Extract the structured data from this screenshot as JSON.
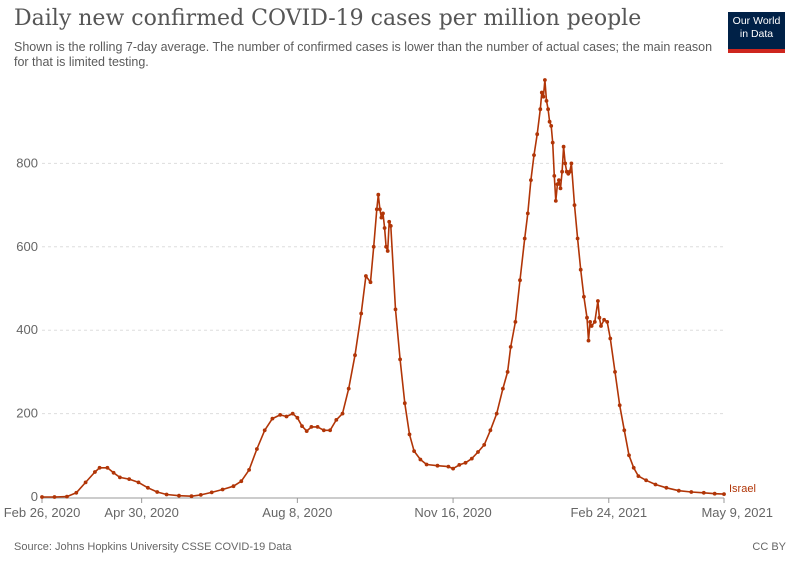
{
  "header": {
    "title": "Daily new confirmed COVID-19 cases per million people",
    "subtitle": "Shown is the rolling 7-day average. The number of confirmed cases is lower than the number of actual cases; the main reason for that is limited testing."
  },
  "logo": {
    "line1": "Our World",
    "line2": "in Data"
  },
  "footer": {
    "source": "Source: Johns Hopkins University CSSE COVID-19 Data",
    "license": "CC BY"
  },
  "colors": {
    "series": "#b13507",
    "grid": "#dddddd",
    "axis": "#999999"
  },
  "chart_data": {
    "type": "line",
    "title": "Daily new confirmed COVID-19 cases per million people",
    "xlabel": "",
    "ylabel": "",
    "x_type": "date",
    "xlim": [
      "2020-02-26",
      "2021-05-09"
    ],
    "ylim": [
      0,
      1000
    ],
    "yticks": [
      0,
      200,
      400,
      600,
      800
    ],
    "yticklabels": [
      "0",
      "200",
      "400",
      "600",
      "800"
    ],
    "xticks": [
      "2020-02-26",
      "2020-04-30",
      "2020-08-08",
      "2020-11-16",
      "2021-02-24",
      "2021-05-09"
    ],
    "xticklabels": [
      "Feb 26, 2020",
      "Apr 30, 2020",
      "Aug 8, 2020",
      "Nov 16, 2020",
      "Feb 24, 2021",
      "May 9, 2021"
    ],
    "grid": true,
    "series": [
      {
        "name": "Israel",
        "color": "#b13507",
        "points": [
          [
            "2020-02-26",
            0
          ],
          [
            "2020-03-05",
            0
          ],
          [
            "2020-03-13",
            1
          ],
          [
            "2020-03-19",
            10
          ],
          [
            "2020-03-25",
            35
          ],
          [
            "2020-03-31",
            60
          ],
          [
            "2020-04-03",
            70
          ],
          [
            "2020-04-08",
            70
          ],
          [
            "2020-04-12",
            58
          ],
          [
            "2020-04-16",
            47
          ],
          [
            "2020-04-22",
            43
          ],
          [
            "2020-04-28",
            35
          ],
          [
            "2020-05-04",
            22
          ],
          [
            "2020-05-10",
            12
          ],
          [
            "2020-05-16",
            6
          ],
          [
            "2020-05-24",
            3
          ],
          [
            "2020-06-01",
            2
          ],
          [
            "2020-06-07",
            5
          ],
          [
            "2020-06-14",
            11
          ],
          [
            "2020-06-21",
            18
          ],
          [
            "2020-06-28",
            26
          ],
          [
            "2020-07-03",
            38
          ],
          [
            "2020-07-08",
            65
          ],
          [
            "2020-07-13",
            115
          ],
          [
            "2020-07-18",
            160
          ],
          [
            "2020-07-23",
            188
          ],
          [
            "2020-07-28",
            197
          ],
          [
            "2020-08-01",
            193
          ],
          [
            "2020-08-05",
            200
          ],
          [
            "2020-08-08",
            190
          ],
          [
            "2020-08-11",
            170
          ],
          [
            "2020-08-14",
            158
          ],
          [
            "2020-08-17",
            168
          ],
          [
            "2020-08-21",
            168
          ],
          [
            "2020-08-25",
            160
          ],
          [
            "2020-08-29",
            160
          ],
          [
            "2020-09-02",
            185
          ],
          [
            "2020-09-06",
            200
          ],
          [
            "2020-09-10",
            260
          ],
          [
            "2020-09-14",
            340
          ],
          [
            "2020-09-18",
            440
          ],
          [
            "2020-09-21",
            530
          ],
          [
            "2020-09-24",
            515
          ],
          [
            "2020-09-26",
            600
          ],
          [
            "2020-09-28",
            690
          ],
          [
            "2020-09-29",
            725
          ],
          [
            "2020-09-30",
            690
          ],
          [
            "2020-10-01",
            670
          ],
          [
            "2020-10-02",
            680
          ],
          [
            "2020-10-03",
            645
          ],
          [
            "2020-10-04",
            600
          ],
          [
            "2020-10-05",
            590
          ],
          [
            "2020-10-06",
            660
          ],
          [
            "2020-10-07",
            650
          ],
          [
            "2020-10-10",
            450
          ],
          [
            "2020-10-13",
            330
          ],
          [
            "2020-10-16",
            225
          ],
          [
            "2020-10-19",
            150
          ],
          [
            "2020-10-22",
            110
          ],
          [
            "2020-10-26",
            90
          ],
          [
            "2020-10-30",
            78
          ],
          [
            "2020-11-06",
            75
          ],
          [
            "2020-11-13",
            73
          ],
          [
            "2020-11-16",
            68
          ],
          [
            "2020-11-20",
            77
          ],
          [
            "2020-11-24",
            82
          ],
          [
            "2020-11-28",
            92
          ],
          [
            "2020-12-02",
            108
          ],
          [
            "2020-12-06",
            125
          ],
          [
            "2020-12-10",
            160
          ],
          [
            "2020-12-14",
            200
          ],
          [
            "2020-12-18",
            260
          ],
          [
            "2020-12-21",
            300
          ],
          [
            "2020-12-23",
            360
          ],
          [
            "2020-12-26",
            420
          ],
          [
            "2020-12-29",
            520
          ],
          [
            "2021-01-01",
            620
          ],
          [
            "2021-01-03",
            680
          ],
          [
            "2021-01-05",
            760
          ],
          [
            "2021-01-07",
            820
          ],
          [
            "2021-01-09",
            870
          ],
          [
            "2021-01-11",
            930
          ],
          [
            "2021-01-12",
            970
          ],
          [
            "2021-01-13",
            960
          ],
          [
            "2021-01-14",
            1000
          ],
          [
            "2021-01-15",
            950
          ],
          [
            "2021-01-16",
            930
          ],
          [
            "2021-01-17",
            900
          ],
          [
            "2021-01-18",
            890
          ],
          [
            "2021-01-19",
            850
          ],
          [
            "2021-01-20",
            770
          ],
          [
            "2021-01-21",
            710
          ],
          [
            "2021-01-22",
            750
          ],
          [
            "2021-01-23",
            760
          ],
          [
            "2021-01-24",
            740
          ],
          [
            "2021-01-25",
            780
          ],
          [
            "2021-01-26",
            840
          ],
          [
            "2021-01-27",
            800
          ],
          [
            "2021-01-28",
            780
          ],
          [
            "2021-01-29",
            775
          ],
          [
            "2021-01-30",
            780
          ],
          [
            "2021-01-31",
            800
          ],
          [
            "2021-02-02",
            700
          ],
          [
            "2021-02-04",
            620
          ],
          [
            "2021-02-06",
            545
          ],
          [
            "2021-02-08",
            480
          ],
          [
            "2021-02-10",
            430
          ],
          [
            "2021-02-11",
            375
          ],
          [
            "2021-02-12",
            420
          ],
          [
            "2021-02-13",
            410
          ],
          [
            "2021-02-15",
            420
          ],
          [
            "2021-02-17",
            470
          ],
          [
            "2021-02-18",
            430
          ],
          [
            "2021-02-19",
            410
          ],
          [
            "2021-02-21",
            425
          ],
          [
            "2021-02-23",
            420
          ],
          [
            "2021-02-25",
            380
          ],
          [
            "2021-02-28",
            300
          ],
          [
            "2021-03-03",
            220
          ],
          [
            "2021-03-06",
            160
          ],
          [
            "2021-03-09",
            100
          ],
          [
            "2021-03-12",
            70
          ],
          [
            "2021-03-15",
            50
          ],
          [
            "2021-03-20",
            40
          ],
          [
            "2021-03-26",
            30
          ],
          [
            "2021-04-02",
            22
          ],
          [
            "2021-04-10",
            15
          ],
          [
            "2021-04-18",
            12
          ],
          [
            "2021-04-26",
            10
          ],
          [
            "2021-05-03",
            8
          ],
          [
            "2021-05-09",
            7
          ]
        ]
      }
    ]
  }
}
